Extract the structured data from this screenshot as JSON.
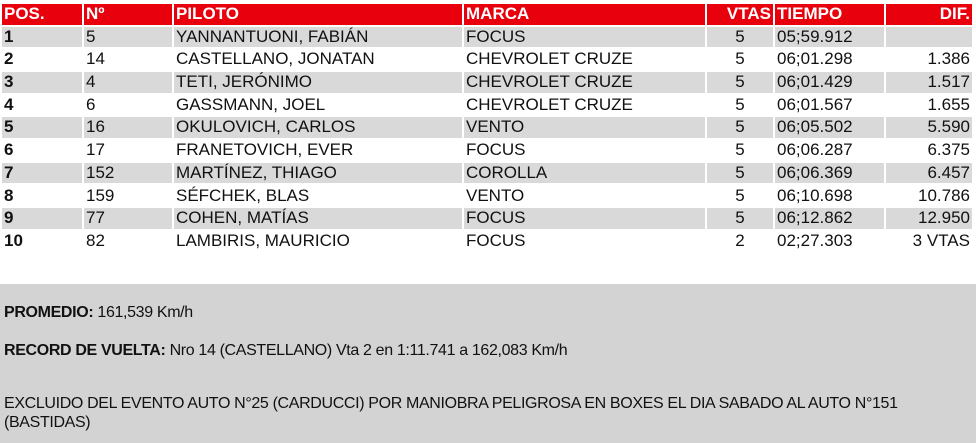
{
  "table": {
    "headers": [
      "POS.",
      "Nº",
      "PILOTO",
      "MARCA",
      "VTAS",
      "TIEMPO",
      "DIF."
    ],
    "rows": [
      [
        "1",
        "5",
        "YANNANTUONI, FABIÁN",
        "FOCUS",
        "5",
        "05;59.912",
        ""
      ],
      [
        "2",
        "14",
        "CASTELLANO, JONATAN",
        "CHEVROLET CRUZE",
        "5",
        "06;01.298",
        "1.386"
      ],
      [
        "3",
        "4",
        "TETI, JERÓNIMO",
        "CHEVROLET CRUZE",
        "5",
        "06;01.429",
        "1.517"
      ],
      [
        "4",
        "6",
        "GASSMANN, JOEL",
        "CHEVROLET CRUZE",
        "5",
        "06;01.567",
        "1.655"
      ],
      [
        "5",
        "16",
        "OKULOVICH, CARLOS",
        "VENTO",
        "5",
        "06;05.502",
        "5.590"
      ],
      [
        "6",
        "17",
        "FRANETOVICH, EVER",
        "FOCUS",
        "5",
        "06;06.287",
        "6.375"
      ],
      [
        "7",
        "152",
        "MARTÍNEZ, THIAGO",
        "COROLLA",
        "5",
        "06;06.369",
        "6.457"
      ],
      [
        "8",
        "159",
        "SÉFCHEK, BLAS",
        "VENTO",
        "5",
        "06;10.698",
        "10.786"
      ],
      [
        "9",
        "77",
        "COHEN, MATÍAS",
        "FOCUS",
        "5",
        "06;12.862",
        "12.950"
      ],
      [
        "10",
        "82",
        "LAMBIRIS, MAURICIO",
        "FOCUS",
        "2",
        "02;27.303",
        "3 VTAS"
      ]
    ]
  },
  "notes": {
    "promedio_label": "PROMEDIO:",
    "promedio_value": " 161,539 Km/h",
    "record_label": "RECORD DE VUELTA:",
    "record_value": " Nro 14 (CASTELLANO) Vta 2 en 1:11.741 a 162,083 Km/h",
    "exclusion": "EXCLUIDO DEL EVENTO AUTO N°25 (CARDUCCI) POR MANIOBRA PELIGROSA EN BOXES EL DIA SABADO AL AUTO N°151 (BASTIDAS)"
  },
  "colors": {
    "header_bg": "#e8000c",
    "row_alt_bg": "#d9d9d9",
    "notes_bg": "#d4d3d4"
  }
}
